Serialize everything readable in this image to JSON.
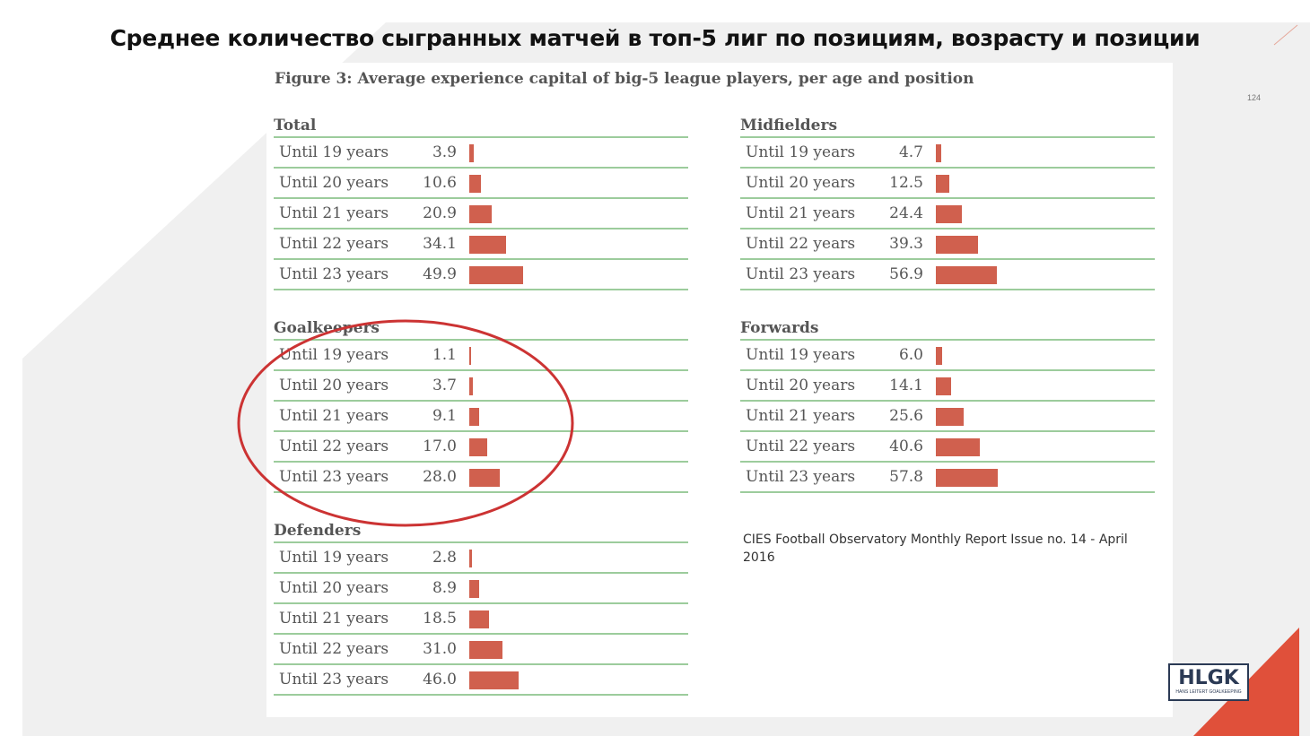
{
  "slide_title": "Среднее количество сыгранных матчей в топ-5 лиг по позициям, возрасту и позиции",
  "figure_caption": "Figure 3: Average experience capital of big-5 league players, per age and position",
  "page_number": "124",
  "source_note": "CIES Football Observatory Monthly Report Issue no. 14 - April 2016",
  "logo_text": "HLGK",
  "logo_subtext": "HANS LEITERT GOALKEEPING",
  "colors": {
    "bar": "#d0604e",
    "rule": "#9ccc9c",
    "circle": "#cc3333",
    "accent": "#e0503a"
  },
  "chart_data": [
    {
      "type": "bar",
      "title": "Total",
      "categories": [
        "Until 19 years",
        "Until 20 years",
        "Until 21 years",
        "Until 22 years",
        "Until 23 years"
      ],
      "values": [
        3.9,
        10.6,
        20.9,
        34.1,
        49.9
      ],
      "labels": [
        "3.9",
        "10.6",
        "20.9",
        "34.1",
        "49.9"
      ]
    },
    {
      "type": "bar",
      "title": "Goalkeepers",
      "categories": [
        "Until 19 years",
        "Until 20 years",
        "Until 21 years",
        "Until 22 years",
        "Until 23 years"
      ],
      "values": [
        1.1,
        3.7,
        9.1,
        17.0,
        28.0
      ],
      "labels": [
        "1.1",
        "3.7",
        "9.1",
        "17.0",
        "28.0"
      ]
    },
    {
      "type": "bar",
      "title": "Defenders",
      "categories": [
        "Until 19 years",
        "Until 20 years",
        "Until 21 years",
        "Until 22 years",
        "Until 23 years"
      ],
      "values": [
        2.8,
        8.9,
        18.5,
        31.0,
        46.0
      ],
      "labels": [
        "2.8",
        "8.9",
        "18.5",
        "31.0",
        "46.0"
      ]
    },
    {
      "type": "bar",
      "title": "Midfielders",
      "categories": [
        "Until 19 years",
        "Until 20 years",
        "Until 21 years",
        "Until 22 years",
        "Until 23 years"
      ],
      "values": [
        4.7,
        12.5,
        24.4,
        39.3,
        56.9
      ],
      "labels": [
        "4.7",
        "12.5",
        "24.4",
        "39.3",
        "56.9"
      ]
    },
    {
      "type": "bar",
      "title": "Forwards",
      "categories": [
        "Until 19 years",
        "Until 20 years",
        "Until 21 years",
        "Until 22 years",
        "Until 23 years"
      ],
      "values": [
        6.0,
        14.1,
        25.6,
        40.6,
        57.8
      ],
      "labels": [
        "6.0",
        "14.1",
        "25.6",
        "40.6",
        "57.8"
      ]
    }
  ]
}
